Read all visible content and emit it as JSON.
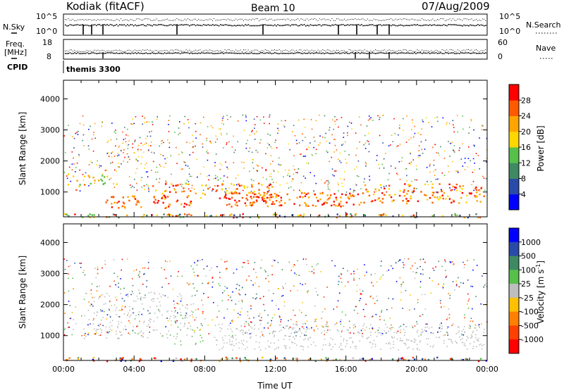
{
  "header": {
    "site": "Kodiak (fitACF)",
    "beam": "Beam 10",
    "date": "07/Aug/2009"
  },
  "panels": {
    "nsky": {
      "left_label": "N.Sky",
      "ticks_left": [
        "10^5",
        "10^0"
      ],
      "ticks_right": [
        "10^5",
        "10^0"
      ],
      "right_label": "N.Search"
    },
    "freq": {
      "left_label_1": "Freq.",
      "left_label_2": "[MHz]",
      "ticks_left": [
        "18",
        "8"
      ],
      "ticks_right": [
        "60",
        "0"
      ],
      "right_label": "Nave"
    },
    "cpid": {
      "label": "CPID",
      "value": "themis 3300"
    }
  },
  "colors": {
    "power_scale": [
      "#0000ff",
      "#2a4aa8",
      "#3f8a63",
      "#56c04b",
      "#ffd700",
      "#ffa500",
      "#ff5a00",
      "#ff0000"
    ],
    "velocity_scale": [
      "#0000ff",
      "#2a4aa8",
      "#3f8a63",
      "#56c04b",
      "#bebebe",
      "#ffc000",
      "#ff8000",
      "#ff4000",
      "#ff0000"
    ],
    "ground_scatter": "#bebebe"
  },
  "chart_data": [
    {
      "type": "heatmap",
      "name": "power-panel",
      "xlabel": "",
      "ylabel": "Slant Range [km]",
      "yticks": [
        "1000",
        "2000",
        "3000",
        "4000"
      ],
      "ylim": [
        200,
        4600
      ],
      "xlim": [
        0,
        24
      ],
      "colorbar": {
        "label": "Power [dB]",
        "ticks": [
          "4",
          "8",
          "12",
          "16",
          "20",
          "24",
          "28"
        ],
        "range": [
          0,
          32
        ]
      }
    },
    {
      "type": "heatmap",
      "name": "velocity-panel",
      "xlabel": "Time UT",
      "ylabel": "Slant Range [km]",
      "yticks": [
        "1000",
        "2000",
        "3000",
        "4000"
      ],
      "xticks": [
        "00:00",
        "04:00",
        "08:00",
        "12:00",
        "16:00",
        "20:00",
        "00:00"
      ],
      "ylim": [
        200,
        4600
      ],
      "xlim": [
        0,
        24
      ],
      "colorbar": {
        "label": "Velocity [m s",
        "label_sup": "-1",
        "label_end": "]",
        "ticks": [
          "1000",
          "500",
          "100",
          "25",
          "-25",
          "-100",
          "-500",
          "-1000"
        ]
      }
    }
  ]
}
